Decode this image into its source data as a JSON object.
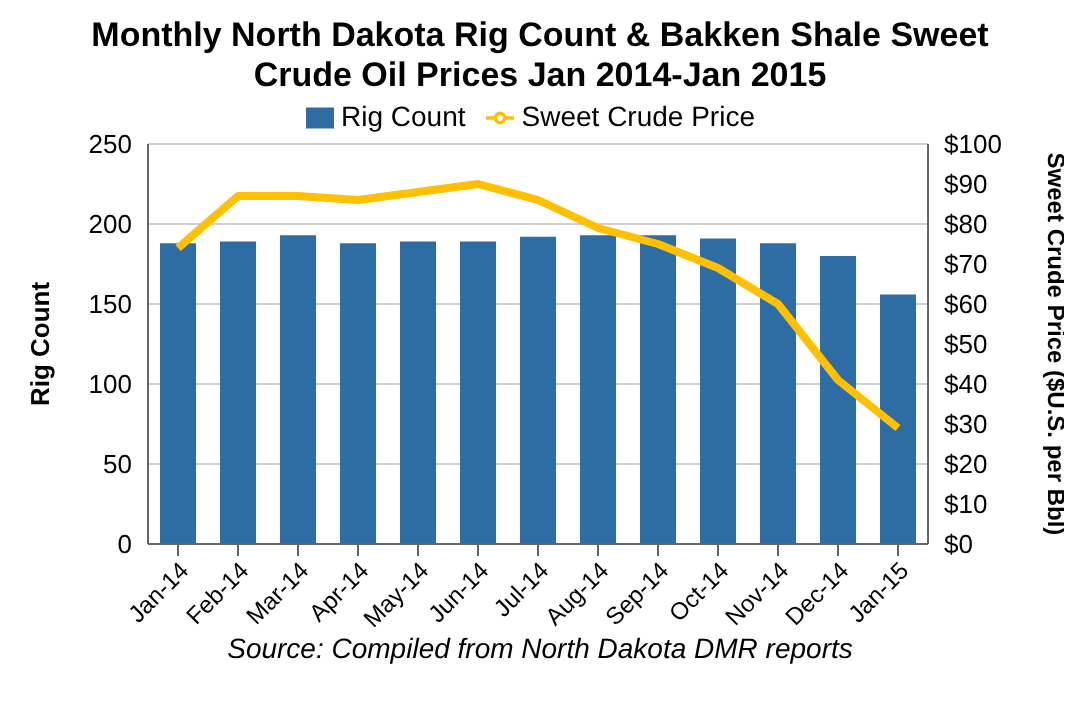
{
  "chart_data": {
    "type": "bar",
    "title": "Monthly North Dakota Rig Count & Bakken Shale Sweet Crude Oil Prices Jan 2014-Jan 2015",
    "ylabel": "Rig Count",
    "y2label": "Sweet Crude Price ($U.S. per Bbl)",
    "annotations": [
      "Source: Compiled from North Dakota DMR reports"
    ],
    "categories": [
      "Jan-14",
      "Feb-14",
      "Mar-14",
      "Apr-14",
      "May-14",
      "Jun-14",
      "Jul-14",
      "Aug-14",
      "Sep-14",
      "Oct-14",
      "Nov-14",
      "Dec-14",
      "Jan-15"
    ],
    "series": [
      {
        "name": "Rig Count",
        "color": "#2e6da4",
        "values": [
          188,
          189,
          193,
          188,
          189,
          189,
          192,
          193,
          193,
          191,
          188,
          180,
          156
        ]
      },
      {
        "name": "Sweet Crude Price",
        "type": "line",
        "axis": "y2",
        "color": "#ffc000",
        "values": [
          74,
          87,
          87,
          86,
          88,
          90,
          86,
          79,
          75,
          69,
          60,
          41,
          29
        ]
      }
    ],
    "ylim": [
      0,
      250
    ],
    "yticks": [
      0,
      50,
      100,
      150,
      200,
      250
    ],
    "y2lim": [
      0,
      100
    ],
    "y2ticks": [
      {
        "value": 0,
        "label": "$0"
      },
      {
        "value": 10,
        "label": "$10"
      },
      {
        "value": 20,
        "label": "$20"
      },
      {
        "value": 30,
        "label": "$30"
      },
      {
        "value": 40,
        "label": "$40"
      },
      {
        "value": 50,
        "label": "$50"
      },
      {
        "value": 60,
        "label": "$60"
      },
      {
        "value": 70,
        "label": "$70"
      },
      {
        "value": 80,
        "label": "$80"
      },
      {
        "value": 90,
        "label": "$90"
      },
      {
        "value": 100,
        "label": "$100"
      }
    ],
    "grid": "y",
    "legend": "top",
    "marker": "none"
  }
}
